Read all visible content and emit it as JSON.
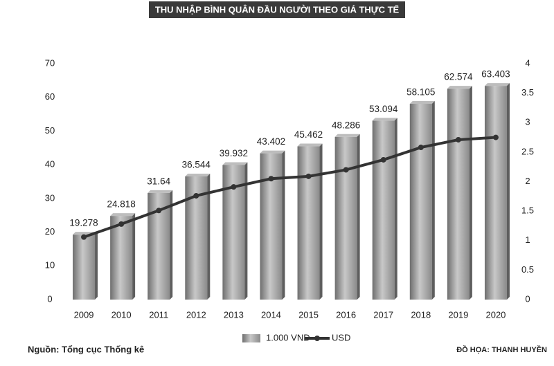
{
  "chart_data": {
    "type": "bar",
    "title": "THU NHẬP BÌNH QUÂN ĐẦU NGƯỜI THEO GIÁ THỰC TẾ",
    "categories": [
      "2009",
      "2010",
      "2011",
      "2012",
      "2013",
      "2014",
      "2015",
      "2016",
      "2017",
      "2018",
      "2019",
      "2020"
    ],
    "series": [
      {
        "name": "1.000 VND",
        "type": "bar",
        "color": "#9a9a9a",
        "values": [
          19.278,
          24.818,
          31.64,
          36.544,
          39.932,
          43.402,
          45.462,
          48.286,
          53.094,
          58.105,
          62.574,
          63.403
        ]
      },
      {
        "name": "USD",
        "type": "line",
        "axis": "y2",
        "color": "#333333",
        "values": [
          1.06,
          1.28,
          1.51,
          1.76,
          1.91,
          2.05,
          2.09,
          2.2,
          2.37,
          2.58,
          2.71,
          2.75
        ]
      }
    ],
    "ylim": [
      0,
      70
    ],
    "yticks": [
      0,
      10,
      20,
      30,
      40,
      50,
      60,
      70
    ],
    "y2lim": [
      0,
      4
    ],
    "y2ticks": [
      0,
      0.5,
      1,
      1.5,
      2,
      2.5,
      3,
      3.5,
      4
    ],
    "source": "Nguồn: Tổng cục Thống kê",
    "credit": "ĐỒ HỌA: THANH HUYỀN"
  }
}
